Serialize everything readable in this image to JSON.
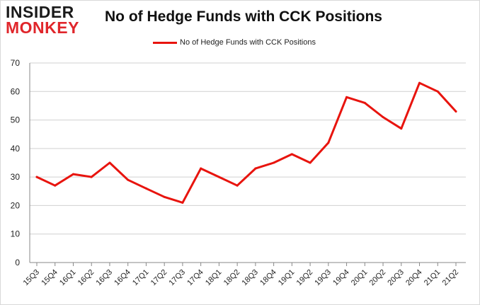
{
  "logo": {
    "line1": "INSIDER",
    "line2": "MONKEY"
  },
  "colors": {
    "series": "#e8140e",
    "logo_accent": "#e0262b",
    "grid": "#d0d0d0"
  },
  "chart_data": {
    "type": "line",
    "title": "No of Hedge Funds with CCK Positions",
    "xlabel": "",
    "ylabel": "",
    "ylim": [
      0,
      70
    ],
    "yticks": [
      0,
      10,
      20,
      30,
      40,
      50,
      60,
      70
    ],
    "grid": true,
    "legend_position": "top-center",
    "categories": [
      "15Q3",
      "15Q4",
      "16Q1",
      "16Q2",
      "16Q3",
      "16Q4",
      "17Q1",
      "17Q2",
      "17Q3",
      "17Q4",
      "18Q1",
      "18Q2",
      "18Q3",
      "18Q4",
      "19Q1",
      "19Q2",
      "19Q3",
      "19Q4",
      "20Q1",
      "20Q2",
      "20Q3",
      "20Q4",
      "21Q1",
      "21Q2"
    ],
    "series": [
      {
        "name": "No of Hedge Funds with CCK Positions",
        "values": [
          30,
          27,
          31,
          30,
          35,
          29,
          26,
          23,
          21,
          33,
          30,
          27,
          33,
          35,
          38,
          35,
          42,
          58,
          56,
          51,
          47,
          63,
          60,
          53
        ]
      }
    ]
  }
}
